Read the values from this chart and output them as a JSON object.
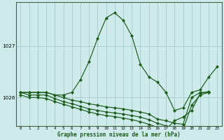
{
  "title": "Graphe pression niveau de la mer (hPa)",
  "background_color": "#ceeaea",
  "grid_color": "#aacfcf",
  "line_color": "#1a5c1a",
  "xlim": [
    -0.5,
    23.5
  ],
  "ylim": [
    1025.45,
    1027.85
  ],
  "yticks": [
    1026,
    1027
  ],
  "xticks": [
    0,
    1,
    2,
    3,
    4,
    5,
    6,
    7,
    8,
    9,
    10,
    11,
    12,
    13,
    14,
    15,
    16,
    17,
    18,
    19,
    20,
    21,
    22,
    23
  ],
  "series": [
    {
      "x": [
        0,
        1,
        2,
        3,
        4,
        5,
        6,
        7,
        8,
        9,
        10,
        11,
        12,
        13,
        14,
        15,
        16,
        17,
        18,
        19,
        20,
        21,
        22,
        23
      ],
      "y": [
        1026.1,
        1026.1,
        1026.1,
        1026.1,
        1026.05,
        1026.05,
        1026.1,
        1026.35,
        1026.7,
        1027.15,
        1027.55,
        1027.65,
        1027.5,
        1027.2,
        1026.65,
        1026.4,
        1026.3,
        1026.1,
        1025.75,
        1025.8,
        1026.1,
        1026.15,
        1026.4,
        1026.6
      ]
    },
    {
      "x": [
        0,
        1,
        2,
        3,
        4,
        5,
        6,
        7,
        8,
        9,
        10,
        11,
        12,
        13,
        14,
        15,
        16,
        17,
        18,
        19,
        20,
        21,
        22
      ],
      "y": [
        1026.1,
        1026.1,
        1026.1,
        1026.1,
        1026.05,
        1026.0,
        1025.95,
        1025.92,
        1025.88,
        1025.85,
        1025.82,
        1025.8,
        1025.78,
        1025.75,
        1025.72,
        1025.68,
        1025.58,
        1025.55,
        1025.5,
        1025.48,
        1026.0,
        1026.1,
        1026.1
      ]
    },
    {
      "x": [
        0,
        1,
        2,
        3,
        4,
        5,
        6,
        7,
        8,
        9,
        10,
        11,
        12,
        13,
        14,
        15,
        16,
        17,
        18,
        19,
        20,
        21,
        22
      ],
      "y": [
        1026.1,
        1026.05,
        1026.05,
        1026.05,
        1025.98,
        1025.92,
        1025.88,
        1025.83,
        1025.78,
        1025.75,
        1025.72,
        1025.7,
        1025.68,
        1025.65,
        1025.62,
        1025.57,
        1025.5,
        1025.45,
        1025.42,
        1025.38,
        1025.85,
        1026.05,
        1026.1
      ]
    },
    {
      "x": [
        0,
        1,
        2,
        3,
        4,
        5,
        6,
        7,
        8,
        9,
        10,
        11,
        12,
        13,
        14,
        15,
        16,
        17,
        18,
        19,
        20,
        21,
        22
      ],
      "y": [
        1026.05,
        1026.0,
        1026.0,
        1025.98,
        1025.92,
        1025.87,
        1025.82,
        1025.77,
        1025.72,
        1025.68,
        1025.65,
        1025.63,
        1025.6,
        1025.57,
        1025.53,
        1025.48,
        1025.42,
        1025.38,
        1025.55,
        1025.62,
        1025.75,
        1026.08,
        1026.12
      ]
    }
  ]
}
